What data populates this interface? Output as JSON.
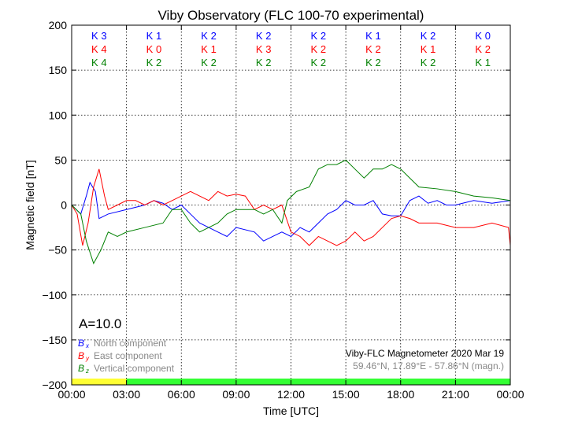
{
  "chart_data": {
    "type": "line",
    "title": "Viby Observatory (FLC 100-70 experimental)",
    "xlabel": "Time [UTC]",
    "ylabel": "Magnetic field [nT]",
    "xlim": [
      0,
      24
    ],
    "ylim": [
      -200,
      200
    ],
    "xticks": [
      0,
      3,
      6,
      9,
      12,
      15,
      18,
      21,
      24
    ],
    "xtick_labels": [
      "00:00",
      "03:00",
      "06:00",
      "09:00",
      "12:00",
      "15:00",
      "18:00",
      "21:00",
      "00:00"
    ],
    "yticks": [
      -200,
      -150,
      -100,
      -50,
      0,
      50,
      100,
      150,
      200
    ],
    "ytick_labels": [
      "−200",
      "−150",
      "−100",
      "−50",
      "0",
      "50",
      "100",
      "150",
      "200"
    ],
    "grid": true,
    "series": [
      {
        "name": "North component",
        "symbol": "B",
        "sub": "x",
        "color": "#0000ff",
        "x": [
          0,
          0.5,
          0.8,
          1,
          1.3,
          1.5,
          2,
          3,
          4,
          4.5,
          5,
          5.5,
          6,
          6.5,
          7,
          7.5,
          8,
          8.5,
          9,
          10,
          10.5,
          11,
          11.5,
          12,
          12.5,
          13,
          13.5,
          14,
          14.5,
          15,
          15.5,
          16,
          16.5,
          17,
          17.5,
          18,
          18.5,
          19,
          19.5,
          20,
          20.5,
          21,
          22,
          23,
          24
        ],
        "y": [
          0,
          -10,
          10,
          25,
          15,
          -15,
          -10,
          -5,
          0,
          5,
          2,
          -5,
          0,
          -10,
          -20,
          -25,
          -30,
          -35,
          -25,
          -30,
          -40,
          -35,
          -30,
          -35,
          -25,
          -30,
          -20,
          -10,
          -5,
          5,
          0,
          0,
          5,
          -10,
          -12,
          -12,
          5,
          10,
          2,
          5,
          0,
          0,
          5,
          2,
          5
        ]
      },
      {
        "name": "East component",
        "symbol": "B",
        "sub": "y",
        "color": "#ff0000",
        "x": [
          0,
          0.3,
          0.6,
          0.9,
          1.2,
          1.5,
          1.8,
          2,
          2.5,
          3,
          3.5,
          4,
          4.5,
          5,
          5.5,
          6,
          6.5,
          7,
          7.5,
          8,
          8.5,
          9,
          9.5,
          10,
          10.5,
          11,
          11.5,
          12,
          12.5,
          13,
          13.5,
          14,
          14.5,
          15,
          15.5,
          16,
          16.5,
          17,
          17.5,
          18,
          18.5,
          19,
          20,
          21,
          22,
          23,
          23.9,
          24
        ],
        "y": [
          0,
          -10,
          -45,
          -20,
          20,
          40,
          10,
          -5,
          0,
          5,
          5,
          0,
          5,
          0,
          5,
          10,
          15,
          10,
          5,
          15,
          10,
          12,
          10,
          -5,
          0,
          -5,
          0,
          -30,
          -35,
          -45,
          -35,
          -40,
          -45,
          -40,
          -30,
          -40,
          -35,
          -25,
          -15,
          -12,
          -15,
          -20,
          -20,
          -25,
          -25,
          -20,
          -25,
          -45
        ]
      },
      {
        "name": "Vertical component",
        "symbol": "B",
        "sub": "z",
        "color": "#008000",
        "x": [
          0,
          0.5,
          0.8,
          1.2,
          1.6,
          2,
          2.5,
          3,
          4,
          5,
          5.5,
          6,
          6.5,
          7,
          7.5,
          8,
          8.5,
          9,
          10,
          10.5,
          11,
          11.5,
          11.8,
          12.3,
          13,
          13.5,
          14,
          14.5,
          15,
          15.5,
          16,
          16.5,
          17,
          17.5,
          18,
          18.5,
          19,
          20,
          21,
          22,
          23,
          24
        ],
        "y": [
          0,
          -10,
          -40,
          -65,
          -50,
          -30,
          -35,
          -30,
          -25,
          -20,
          -5,
          -5,
          -20,
          -30,
          -25,
          -20,
          -10,
          -5,
          -5,
          -10,
          -5,
          -20,
          5,
          15,
          20,
          40,
          45,
          45,
          50,
          40,
          30,
          40,
          40,
          45,
          40,
          30,
          20,
          18,
          15,
          10,
          8,
          5
        ]
      }
    ],
    "k_indices": {
      "North": [
        "K 3",
        "K 1",
        "K 2",
        "K 2",
        "K 2",
        "K 1",
        "K 2",
        "K 0"
      ],
      "East": [
        "K 4",
        "K 0",
        "K 1",
        "K 3",
        "K 2",
        "K 2",
        "K 1",
        "K 2"
      ],
      "Vertical": [
        "K 4",
        "K 2",
        "K 2",
        "K 2",
        "K 2",
        "K 2",
        "K 2",
        "K 1"
      ]
    },
    "a_index": "A=10.0",
    "status_bar": [
      {
        "from": 0,
        "to": 3,
        "color": "#ffff33"
      },
      {
        "from": 3,
        "to": 24,
        "color": "#33ff33"
      }
    ],
    "legend_placement": "bottom-left",
    "annotation_title": "Viby-FLC Magnetometer 2020 Mar 19",
    "annotation_location": "59.46°N, 17.89°E - 57.86°N (magn.)"
  }
}
